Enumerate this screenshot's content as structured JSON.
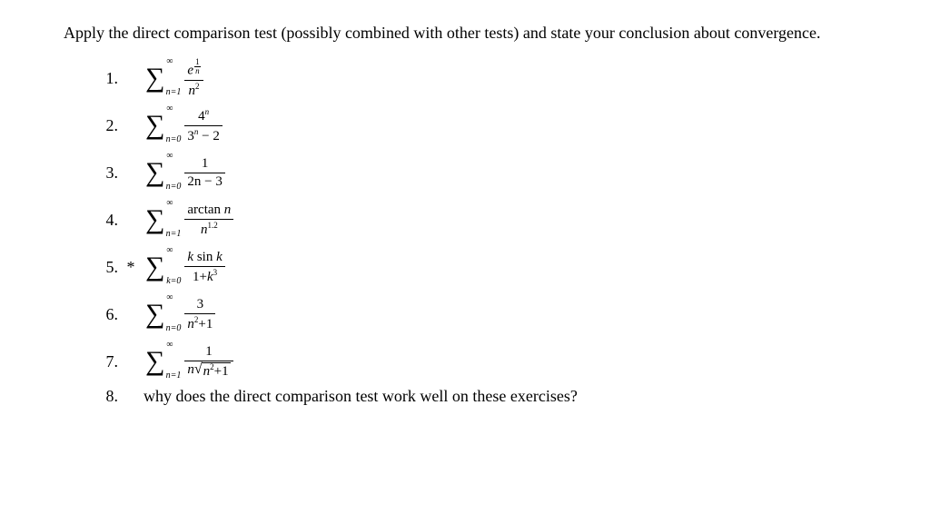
{
  "instructions": "Apply the direct comparison test (possibly combined with other tests) and state your conclusion about convergence.",
  "sigma_symbol": "∑",
  "infinity": "∞",
  "problems": [
    {
      "num": "1.",
      "lower": "n=1",
      "numerator_html": "<span class='ital'>e</span><sup class='fine'><span class='efrac'><span class='enum'>1</span><span class='eden'><span class=ital>n</span></span></span></sup>",
      "denominator_html": "<span class='ital'>n</span><sup class='fine'>2</sup>"
    },
    {
      "num": "2.",
      "lower": "n=0",
      "numerator_html": "4<sup class='fine'><span class='ital'>n</span></sup>",
      "denominator_html": "3<sup class='fine'><span class='ital'>n</span></sup> − 2"
    },
    {
      "num": "3.",
      "lower": "n=0",
      "numerator_html": "1",
      "denominator_html": "2n − 3"
    },
    {
      "num": "4.",
      "lower": "n=1",
      "numerator_html": "arctan <span class='ital'>n</span>",
      "denominator_html": "<span class='ital'>n</span><sup class='fine'>1.2</sup>"
    },
    {
      "num": "5.",
      "star": "*",
      "lower": "k=0",
      "numerator_html": "<span class='ital'>k</span> sin <span class='ital'>k</span>",
      "denominator_html": "1+<span class='ital'>k</span><sup class='fine'>3</sup>"
    },
    {
      "num": "6.",
      "lower": "n=0",
      "numerator_html": "3",
      "denominator_html": "<span class='ital'>n</span><sup class='fine'>2</sup>+1"
    },
    {
      "num": "7.",
      "lower": "n=1",
      "numerator_html": "1",
      "denominator_html": "<span class='ital'>n</span><span class='sqrt'><span class='rad'>√</span><span class='arg'><span class='ital'>n</span><sup class='fine'>2</sup>+1</span></span>"
    }
  ],
  "q8": {
    "num": "8.",
    "text": "why does the direct comparison test work well on these exercises?"
  }
}
